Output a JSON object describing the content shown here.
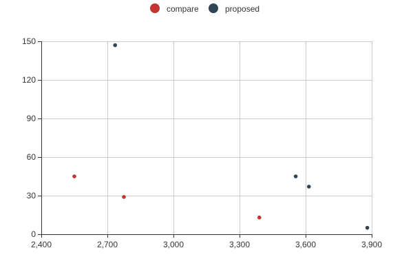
{
  "chart_data": {
    "type": "scatter",
    "title": "",
    "xlabel": "",
    "ylabel": "",
    "xlim": [
      2400,
      3900
    ],
    "ylim": [
      0,
      150
    ],
    "x_ticks": [
      2400,
      2700,
      3000,
      3300,
      3600,
      3900
    ],
    "y_ticks": [
      0,
      30,
      60,
      90,
      120,
      150
    ],
    "x_tick_labels": [
      "2,400",
      "2,700",
      "3,000",
      "3,300",
      "3,600",
      "3,900"
    ],
    "y_tick_labels": [
      "0",
      "30",
      "60",
      "90",
      "120",
      "150"
    ],
    "grid": true,
    "legend_position": "top-center",
    "series": [
      {
        "name": "compare",
        "color": "#c23531",
        "points": [
          {
            "x": 2550,
            "y": 45
          },
          {
            "x": 2775,
            "y": 29
          },
          {
            "x": 3390,
            "y": 13
          }
        ]
      },
      {
        "name": "proposed",
        "color": "#2f4554",
        "points": [
          {
            "x": 2735,
            "y": 147
          },
          {
            "x": 3555,
            "y": 45
          },
          {
            "x": 3615,
            "y": 37
          },
          {
            "x": 3880,
            "y": 5
          }
        ]
      }
    ]
  }
}
